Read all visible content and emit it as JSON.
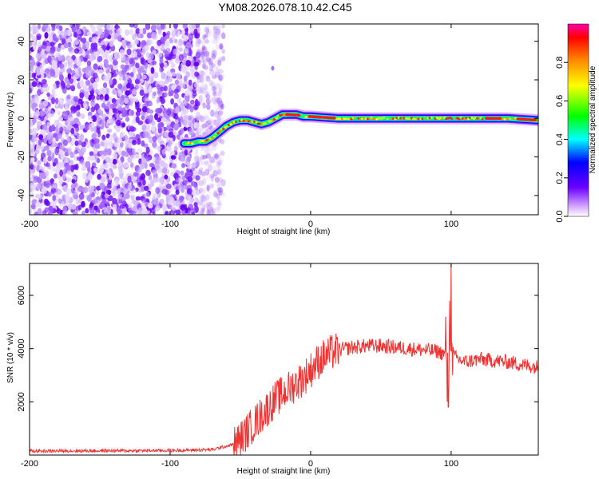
{
  "chart_data": [
    {
      "type": "heatmap",
      "title": "YM08.2026.078.10.42.C45",
      "xlabel": "Height of straight line (km)",
      "ylabel": "Frequency (Hz)",
      "xlim": [
        -200,
        162
      ],
      "ylim": [
        -50,
        49
      ],
      "xticks": [
        -200,
        -100,
        0,
        100
      ],
      "yticks": [
        -40,
        -20,
        0,
        20,
        40
      ],
      "noise_region_x": [
        -200,
        -62
      ],
      "signal_track": {
        "x": [
          -90,
          -85,
          -80,
          -75,
          -70,
          -65,
          -60,
          -55,
          -50,
          -45,
          -40,
          -35,
          -30,
          -25,
          -20,
          -15,
          -10,
          -5,
          0,
          20,
          40,
          60,
          80,
          100,
          120,
          140,
          162
        ],
        "y": [
          -13,
          -13,
          -12,
          -12,
          -10,
          -7,
          -4,
          -2,
          -1,
          -1,
          -2,
          -3,
          -2,
          0,
          2,
          2,
          2,
          1,
          1,
          0,
          0,
          0,
          0,
          0,
          0,
          0,
          -1
        ]
      },
      "isolated_spot": {
        "x": -27,
        "y": 26
      },
      "colorbar": {
        "label": "Normalized spectral amplitude",
        "ticks": [
          "0.0",
          "0.2",
          "0.4",
          "0.6",
          "0.8"
        ],
        "range": [
          0,
          1
        ]
      }
    },
    {
      "type": "line",
      "xlabel": "Height of straight line (km)",
      "ylabel": "SNR (10 * v/v)",
      "xlim": [
        -200,
        162
      ],
      "ylim": [
        0,
        7200
      ],
      "xticks": [
        -200,
        -100,
        0,
        100
      ],
      "yticks": [
        2000,
        4000,
        6000
      ],
      "color": "#f03232",
      "series": [
        {
          "x": [
            -200,
            -150,
            -100,
            -70,
            -55,
            -50,
            -45,
            -40,
            -35,
            -30,
            -25,
            -20,
            -15,
            -10,
            -5,
            0,
            5,
            10,
            15,
            20,
            25,
            30,
            40,
            50,
            60,
            70,
            80,
            90,
            95,
            98,
            100,
            102,
            105,
            110,
            120,
            130,
            140,
            150,
            162
          ],
          "y": [
            150,
            160,
            170,
            200,
            400,
            600,
            900,
            1200,
            1500,
            1800,
            2100,
            2300,
            2500,
            2700,
            2900,
            3200,
            3500,
            3700,
            3850,
            3950,
            4000,
            4050,
            4100,
            4100,
            4050,
            4000,
            3950,
            3900,
            3800,
            3600,
            4200,
            3700,
            3600,
            3500,
            3600,
            3550,
            3500,
            3400,
            3300
          ]
        }
      ],
      "spikes": [
        {
          "x": 96,
          "y": 5200
        },
        {
          "x": 97,
          "y": 2000
        },
        {
          "x": 98,
          "y": 1800
        },
        {
          "x": 99,
          "y": 5800
        },
        {
          "x": 100,
          "y": 7300
        },
        {
          "x": 101,
          "y": 3000
        }
      ]
    }
  ]
}
